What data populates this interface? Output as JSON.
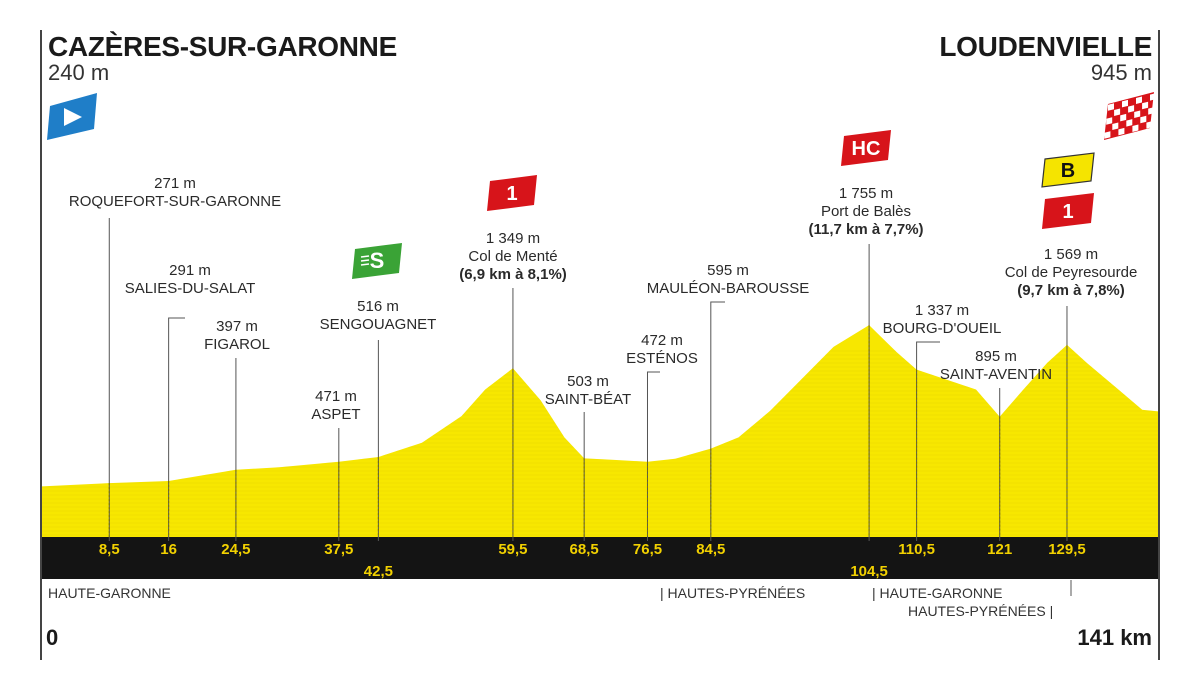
{
  "start": {
    "name": "CAZÈRES-SUR-GARONNE",
    "altitude": "240 m"
  },
  "finish": {
    "name": "LOUDENVIELLE",
    "altitude": "945 m"
  },
  "icons": {
    "start_flag": "start-flag-icon",
    "finish_flag": "checkered-flag-icon"
  },
  "colors": {
    "profile": "#f7e700",
    "band": "#141414",
    "km_text": "#f2d100",
    "climb_badge": "#d7141a",
    "sprint_badge": "#3aa336",
    "bonus_badge": "#f5e400",
    "start_flag": "#1f7ec8"
  },
  "points": [
    {
      "km": 8.5,
      "km_label": "8,5",
      "alt_label": "271 m",
      "name": "ROQUEFORT-SUR-GARONNE"
    },
    {
      "km": 16,
      "km_label": "16",
      "alt_label": "291 m",
      "name": "SALIES-DU-SALAT"
    },
    {
      "km": 24.5,
      "km_label": "24,5",
      "alt_label": "397 m",
      "name": "FIGAROL"
    },
    {
      "km": 37.5,
      "km_label": "37,5",
      "alt_label": "471 m",
      "name": "ASPET"
    },
    {
      "km": 42.5,
      "km_label": "42,5",
      "alt_label": "516 m",
      "name": "SENGOUAGNET"
    },
    {
      "km": 59.5,
      "km_label": "59,5",
      "alt_label": "1 349 m",
      "name": "Col de Menté",
      "gradient": "(6,9 km à 8,1%)"
    },
    {
      "km": 68.5,
      "km_label": "68,5",
      "alt_label": "503 m",
      "name": "SAINT-BÉAT"
    },
    {
      "km": 76.5,
      "km_label": "76,5",
      "alt_label": "472 m",
      "name": "ESTÉNOS"
    },
    {
      "km": 84.5,
      "km_label": "84,5",
      "alt_label": "595 m",
      "name": "MAULÉON-BAROUSSE"
    },
    {
      "km": 104.5,
      "km_label": "104,5",
      "alt_label": "1 755 m",
      "name": "Port de Balès",
      "gradient": "(11,7 km à 7,7%)"
    },
    {
      "km": 110.5,
      "km_label": "110,5",
      "alt_label": "1 337 m",
      "name": "BOURG-D'OUEIL"
    },
    {
      "km": 121,
      "km_label": "121",
      "alt_label": "895 m",
      "name": "SAINT-AVENTIN"
    },
    {
      "km": 129.5,
      "km_label": "129,5",
      "alt_label": "1 569 m",
      "name": "Col de Peyresourde",
      "gradient": "(9,7 km à 7,8%)"
    }
  ],
  "badges": [
    {
      "text": "S",
      "kind": "sprint",
      "at_km": 42.5
    },
    {
      "text": "1",
      "kind": "climb",
      "at_km": 59.5
    },
    {
      "text": "HC",
      "kind": "climb",
      "at_km": 104.5
    },
    {
      "text": "B",
      "kind": "bonus",
      "at_km": 129.5
    },
    {
      "text": "1",
      "kind": "climb",
      "at_km": 129.5
    }
  ],
  "regions": [
    {
      "name": "HAUTE-GARONNE"
    },
    {
      "name": "HAUTES-PYRÉNÉES"
    },
    {
      "name": "HAUTE-GARONNE"
    },
    {
      "name": "HAUTES-PYRÉNÉES"
    }
  ],
  "axis": {
    "start_label": "0",
    "end_label": "141 km"
  },
  "chart_data": {
    "type": "area",
    "xlim": [
      0,
      141
    ],
    "ylim": [
      0,
      1800
    ],
    "x": [
      0,
      8.5,
      16,
      24.5,
      30,
      37.5,
      42.5,
      48,
      53,
      56,
      59.5,
      63,
      66,
      68.5,
      72,
      76.5,
      80,
      84.5,
      88,
      92,
      96,
      100,
      104.5,
      108,
      110.5,
      114,
      118,
      121,
      124,
      127,
      129.5,
      132,
      136,
      139,
      141
    ],
    "series": [
      {
        "values": [
          240,
          271,
          291,
          397,
          420,
          471,
          516,
          650,
          900,
          1150,
          1349,
          1050,
          700,
          503,
          490,
          472,
          500,
          595,
          700,
          950,
          1250,
          1550,
          1755,
          1500,
          1337,
          1250,
          1150,
          895,
          1150,
          1400,
          1569,
          1400,
          1150,
          960,
          945
        ]
      }
    ]
  }
}
